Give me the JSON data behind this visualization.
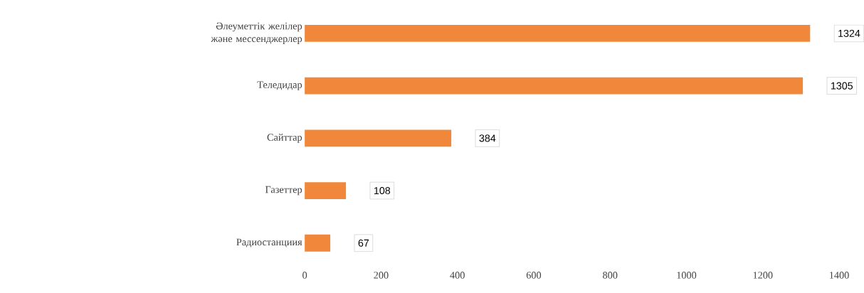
{
  "chart_data": {
    "type": "bar",
    "orientation": "horizontal",
    "categories": [
      "Әлеуметтік желілер және мессенджерлер",
      "Теледидар",
      "Сайттар",
      "Газеттер",
      "Радиостанциия"
    ],
    "values": [
      1324,
      1305,
      384,
      108,
      67
    ],
    "color": "#f0873a",
    "xlim": [
      0,
      1400
    ],
    "xticks": [
      0,
      200,
      400,
      600,
      800,
      1000,
      1200,
      1400
    ],
    "data_labels": true,
    "grid": false
  }
}
